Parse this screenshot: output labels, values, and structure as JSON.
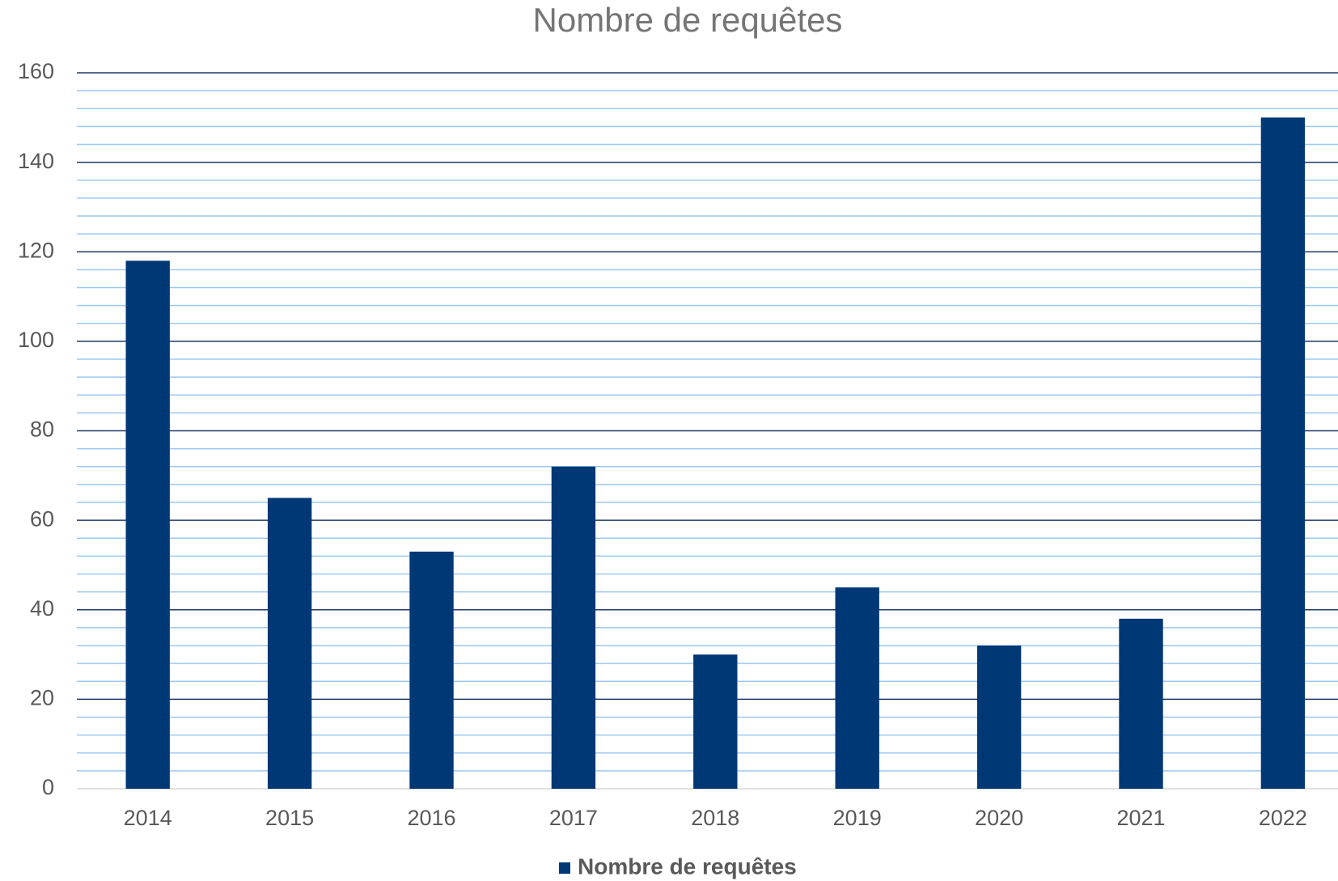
{
  "chart_data": {
    "type": "bar",
    "title": "Nombre de requêtes",
    "categories": [
      "2014",
      "2015",
      "2016",
      "2017",
      "2018",
      "2019",
      "2020",
      "2021",
      "2022"
    ],
    "series": [
      {
        "name": "Nombre de requêtes",
        "color": "#003876",
        "values": [
          118,
          65,
          53,
          72,
          30,
          45,
          32,
          38,
          150
        ]
      }
    ],
    "ylim": [
      0,
      160
    ],
    "yticks": [
      0,
      20,
      40,
      60,
      80,
      100,
      120,
      140,
      160
    ],
    "yminorticks": [
      4,
      8,
      12,
      16,
      24,
      28,
      32,
      36,
      44,
      48,
      52,
      56,
      64,
      68,
      72,
      76,
      84,
      88,
      92,
      96,
      104,
      108,
      112,
      116,
      124,
      128,
      132,
      136,
      144,
      148,
      152,
      156
    ],
    "grid": true,
    "legend": "bottom"
  }
}
